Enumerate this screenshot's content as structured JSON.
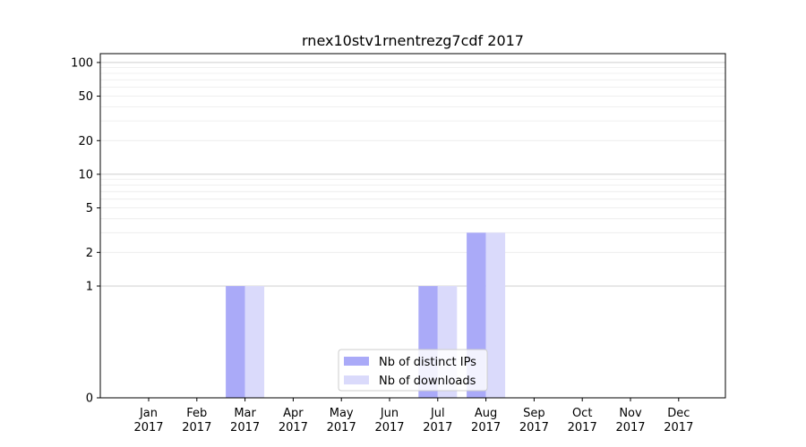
{
  "chart_data": {
    "type": "bar",
    "title": "rnex10stv1rnentrezg7cdf 2017",
    "xlabel": "",
    "ylabel": "",
    "y_scale": "symlog",
    "ylim": [
      0,
      120
    ],
    "y_ticks": [
      {
        "value": 0,
        "label": "0"
      },
      {
        "value": 1,
        "label": "1"
      },
      {
        "value": 2,
        "label": "2"
      },
      {
        "value": 5,
        "label": "5"
      },
      {
        "value": 10,
        "label": "10"
      },
      {
        "value": 20,
        "label": "20"
      },
      {
        "value": 50,
        "label": "50"
      },
      {
        "value": 100,
        "label": "100"
      }
    ],
    "categories": [
      {
        "month": "Jan",
        "year": "2017"
      },
      {
        "month": "Feb",
        "year": "2017"
      },
      {
        "month": "Mar",
        "year": "2017"
      },
      {
        "month": "Apr",
        "year": "2017"
      },
      {
        "month": "May",
        "year": "2017"
      },
      {
        "month": "Jun",
        "year": "2017"
      },
      {
        "month": "Jul",
        "year": "2017"
      },
      {
        "month": "Aug",
        "year": "2017"
      },
      {
        "month": "Sep",
        "year": "2017"
      },
      {
        "month": "Oct",
        "year": "2017"
      },
      {
        "month": "Nov",
        "year": "2017"
      },
      {
        "month": "Dec",
        "year": "2017"
      }
    ],
    "series": [
      {
        "name": "Nb of distinct IPs",
        "color": "#aaaaf8",
        "values": [
          0,
          0,
          1,
          0,
          0,
          0,
          1,
          3,
          0,
          0,
          0,
          0
        ]
      },
      {
        "name": "Nb of downloads",
        "color": "#dadafb",
        "values": [
          0,
          0,
          1,
          0,
          0,
          0,
          1,
          3,
          0,
          0,
          0,
          0
        ]
      }
    ],
    "grid": true,
    "legend_position": "lower-center"
  }
}
